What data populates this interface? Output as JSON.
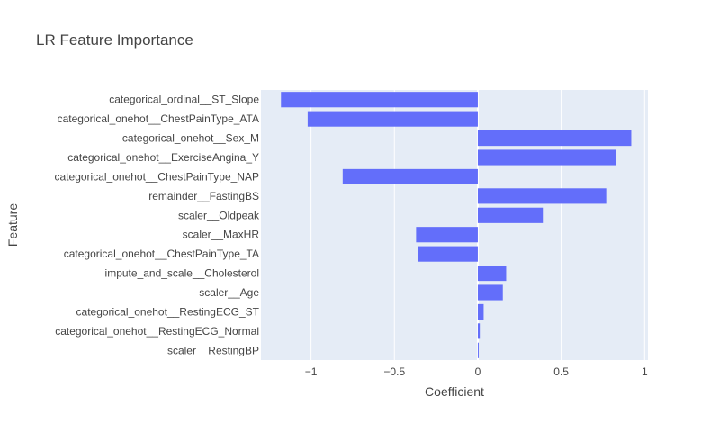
{
  "chart_data": {
    "type": "bar",
    "orientation": "horizontal",
    "title": "LR Feature Importance",
    "xlabel": "Coefficient",
    "ylabel": "Feature",
    "xlim": [
      -1.3,
      1.02
    ],
    "x_ticks": [
      -1,
      -0.5,
      0,
      0.5,
      1
    ],
    "x_tick_labels": [
      "−1",
      "−0.5",
      "0",
      "0.5",
      "1"
    ],
    "grid": true,
    "categories": [
      "categorical_ordinal__ST_Slope",
      "categorical_onehot__ChestPainType_ATA",
      "categorical_onehot__Sex_M",
      "categorical_onehot__ExerciseAngina_Y",
      "categorical_onehot__ChestPainType_NAP",
      "remainder__FastingBS",
      "scaler__Oldpeak",
      "scaler__MaxHR",
      "categorical_onehot__ChestPainType_TA",
      "impute_and_scale__Cholesterol",
      "scaler__Age",
      "categorical_onehot__RestingECG_ST",
      "categorical_onehot__RestingECG_Normal",
      "scaler__RestingBP"
    ],
    "values": [
      -1.18,
      -1.02,
      0.92,
      0.83,
      -0.81,
      0.77,
      0.39,
      -0.37,
      -0.36,
      0.17,
      0.15,
      0.035,
      0.012,
      0.005
    ],
    "colors": {
      "bar": "#636efa",
      "plot_bg": "#e5ecf6",
      "grid": "#ffffff",
      "text": "#444444"
    }
  }
}
